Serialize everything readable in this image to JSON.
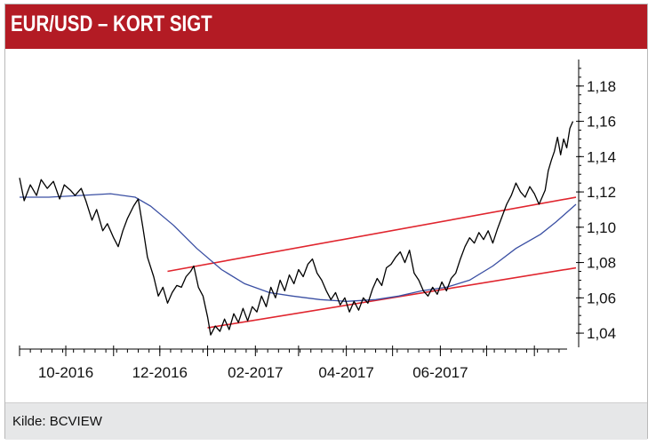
{
  "header": {
    "title": "EUR/USD – KORT SIGT"
  },
  "footer": {
    "source": "Kilde: BCVIEW"
  },
  "colors": {
    "header_bg": "#b31b24",
    "price": "#000000",
    "moving_average": "#3a4fa3",
    "trend_channel": "#e0252e",
    "footer_bg": "#e6e7e8"
  },
  "chart_data": {
    "type": "line",
    "title": "EUR/USD – KORT SIGT",
    "xlabel": "",
    "ylabel": "",
    "y_axis_side": "right",
    "ylim": [
      1.035,
      1.193
    ],
    "xlim": [
      "2016-09-01",
      "2017-08-28"
    ],
    "grid": false,
    "y_ticks": [
      1.04,
      1.06,
      1.08,
      1.1,
      1.12,
      1.14,
      1.16,
      1.18
    ],
    "y_tick_labels": [
      "1,04",
      "1,06",
      "1,08",
      "1,10",
      "1,12",
      "1,14",
      "1,16",
      "1,18"
    ],
    "x_tick_labels": [
      {
        "label": "10-2016",
        "date": "2016-10-01"
      },
      {
        "label": "12-2016",
        "date": "2016-12-01"
      },
      {
        "label": "02-2017",
        "date": "2017-02-01"
      },
      {
        "label": "04-2017",
        "date": "2017-04-01"
      },
      {
        "label": "06-2017",
        "date": "2017-06-01"
      }
    ],
    "series": [
      {
        "role": "price",
        "points": [
          [
            "2016-09-01",
            1.128
          ],
          [
            "2016-09-04",
            1.115
          ],
          [
            "2016-09-08",
            1.124
          ],
          [
            "2016-09-12",
            1.118
          ],
          [
            "2016-09-15",
            1.127
          ],
          [
            "2016-09-19",
            1.122
          ],
          [
            "2016-09-23",
            1.126
          ],
          [
            "2016-09-27",
            1.116
          ],
          [
            "2016-09-30",
            1.124
          ],
          [
            "2016-10-04",
            1.121
          ],
          [
            "2016-10-07",
            1.118
          ],
          [
            "2016-10-11",
            1.122
          ],
          [
            "2016-10-14",
            1.115
          ],
          [
            "2016-10-18",
            1.104
          ],
          [
            "2016-10-21",
            1.11
          ],
          [
            "2016-10-25",
            1.098
          ],
          [
            "2016-10-28",
            1.102
          ],
          [
            "2016-11-01",
            1.094
          ],
          [
            "2016-11-04",
            1.089
          ],
          [
            "2016-11-07",
            1.098
          ],
          [
            "2016-11-10",
            1.105
          ],
          [
            "2016-11-14",
            1.112
          ],
          [
            "2016-11-17",
            1.116
          ],
          [
            "2016-11-20",
            1.1
          ],
          [
            "2016-11-23",
            1.083
          ],
          [
            "2016-11-27",
            1.072
          ],
          [
            "2016-11-30",
            1.061
          ],
          [
            "2016-12-03",
            1.066
          ],
          [
            "2016-12-06",
            1.057
          ],
          [
            "2016-12-09",
            1.063
          ],
          [
            "2016-12-12",
            1.067
          ],
          [
            "2016-12-15",
            1.066
          ],
          [
            "2016-12-18",
            1.072
          ],
          [
            "2016-12-21",
            1.075
          ],
          [
            "2016-12-23",
            1.078
          ],
          [
            "2016-12-26",
            1.066
          ],
          [
            "2016-12-29",
            1.061
          ],
          [
            "2017-01-01",
            1.049
          ],
          [
            "2017-01-03",
            1.039
          ],
          [
            "2017-01-06",
            1.044
          ],
          [
            "2017-01-09",
            1.041
          ],
          [
            "2017-01-12",
            1.048
          ],
          [
            "2017-01-15",
            1.042
          ],
          [
            "2017-01-18",
            1.051
          ],
          [
            "2017-01-21",
            1.046
          ],
          [
            "2017-01-24",
            1.054
          ],
          [
            "2017-01-27",
            1.047
          ],
          [
            "2017-01-30",
            1.055
          ],
          [
            "2017-02-02",
            1.052
          ],
          [
            "2017-02-05",
            1.061
          ],
          [
            "2017-02-08",
            1.055
          ],
          [
            "2017-02-11",
            1.066
          ],
          [
            "2017-02-14",
            1.06
          ],
          [
            "2017-02-17",
            1.07
          ],
          [
            "2017-02-20",
            1.064
          ],
          [
            "2017-02-23",
            1.073
          ],
          [
            "2017-02-26",
            1.068
          ],
          [
            "2017-03-01",
            1.076
          ],
          [
            "2017-03-04",
            1.072
          ],
          [
            "2017-03-07",
            1.079
          ],
          [
            "2017-03-10",
            1.082
          ],
          [
            "2017-03-13",
            1.074
          ],
          [
            "2017-03-16",
            1.07
          ],
          [
            "2017-03-19",
            1.064
          ],
          [
            "2017-03-22",
            1.059
          ],
          [
            "2017-03-25",
            1.063
          ],
          [
            "2017-03-28",
            1.056
          ],
          [
            "2017-03-31",
            1.06
          ],
          [
            "2017-04-03",
            1.052
          ],
          [
            "2017-04-06",
            1.058
          ],
          [
            "2017-04-09",
            1.053
          ],
          [
            "2017-04-12",
            1.06
          ],
          [
            "2017-04-15",
            1.057
          ],
          [
            "2017-04-18",
            1.065
          ],
          [
            "2017-04-21",
            1.071
          ],
          [
            "2017-04-24",
            1.067
          ],
          [
            "2017-04-27",
            1.077
          ],
          [
            "2017-04-30",
            1.079
          ],
          [
            "2017-05-03",
            1.083
          ],
          [
            "2017-05-06",
            1.086
          ],
          [
            "2017-05-09",
            1.08
          ],
          [
            "2017-05-12",
            1.087
          ],
          [
            "2017-05-15",
            1.074
          ],
          [
            "2017-05-18",
            1.07
          ],
          [
            "2017-05-21",
            1.064
          ],
          [
            "2017-05-24",
            1.061
          ],
          [
            "2017-05-27",
            1.066
          ],
          [
            "2017-05-30",
            1.062
          ],
          [
            "2017-06-02",
            1.069
          ],
          [
            "2017-06-05",
            1.064
          ],
          [
            "2017-06-08",
            1.071
          ],
          [
            "2017-06-11",
            1.074
          ],
          [
            "2017-06-14",
            1.082
          ],
          [
            "2017-06-17",
            1.089
          ],
          [
            "2017-06-20",
            1.094
          ],
          [
            "2017-06-23",
            1.091
          ],
          [
            "2017-06-26",
            1.097
          ],
          [
            "2017-06-29",
            1.093
          ],
          [
            "2017-07-02",
            1.098
          ],
          [
            "2017-07-05",
            1.091
          ],
          [
            "2017-07-08",
            1.099
          ],
          [
            "2017-07-11",
            1.106
          ],
          [
            "2017-07-14",
            1.113
          ],
          [
            "2017-07-17",
            1.118
          ],
          [
            "2017-07-20",
            1.125
          ],
          [
            "2017-07-23",
            1.12
          ],
          [
            "2017-07-26",
            1.117
          ],
          [
            "2017-07-29",
            1.123
          ],
          [
            "2017-08-01",
            1.119
          ],
          [
            "2017-08-04",
            1.113
          ],
          [
            "2017-08-06",
            1.117
          ],
          [
            "2017-08-08",
            1.121
          ],
          [
            "2017-08-10",
            1.132
          ],
          [
            "2017-08-12",
            1.138
          ],
          [
            "2017-08-14",
            1.143
          ],
          [
            "2017-08-16",
            1.151
          ],
          [
            "2017-08-18",
            1.141
          ],
          [
            "2017-08-20",
            1.15
          ],
          [
            "2017-08-22",
            1.145
          ],
          [
            "2017-08-24",
            1.156
          ],
          [
            "2017-08-26",
            1.16
          ]
        ]
      },
      {
        "role": "moving_average",
        "points": [
          [
            "2016-09-01",
            1.117
          ],
          [
            "2016-09-20",
            1.117
          ],
          [
            "2016-10-10",
            1.118
          ],
          [
            "2016-10-30",
            1.119
          ],
          [
            "2016-11-15",
            1.117
          ],
          [
            "2016-11-25",
            1.112
          ],
          [
            "2016-12-10",
            1.101
          ],
          [
            "2016-12-25",
            1.088
          ],
          [
            "2017-01-10",
            1.076
          ],
          [
            "2017-01-25",
            1.068
          ],
          [
            "2017-02-10",
            1.063
          ],
          [
            "2017-02-25",
            1.061
          ],
          [
            "2017-03-15",
            1.059
          ],
          [
            "2017-04-01",
            1.058
          ],
          [
            "2017-04-20",
            1.059
          ],
          [
            "2017-05-05",
            1.061
          ],
          [
            "2017-05-20",
            1.064
          ],
          [
            "2017-06-05",
            1.066
          ],
          [
            "2017-06-20",
            1.07
          ],
          [
            "2017-07-05",
            1.078
          ],
          [
            "2017-07-20",
            1.088
          ],
          [
            "2017-08-05",
            1.096
          ],
          [
            "2017-08-15",
            1.103
          ],
          [
            "2017-08-28",
            1.113
          ]
        ]
      },
      {
        "role": "channel_upper",
        "points": [
          [
            "2016-12-06",
            1.075
          ],
          [
            "2017-08-28",
            1.117
          ]
        ]
      },
      {
        "role": "channel_lower",
        "points": [
          [
            "2017-01-01",
            1.043
          ],
          [
            "2017-08-28",
            1.077
          ]
        ]
      }
    ]
  }
}
